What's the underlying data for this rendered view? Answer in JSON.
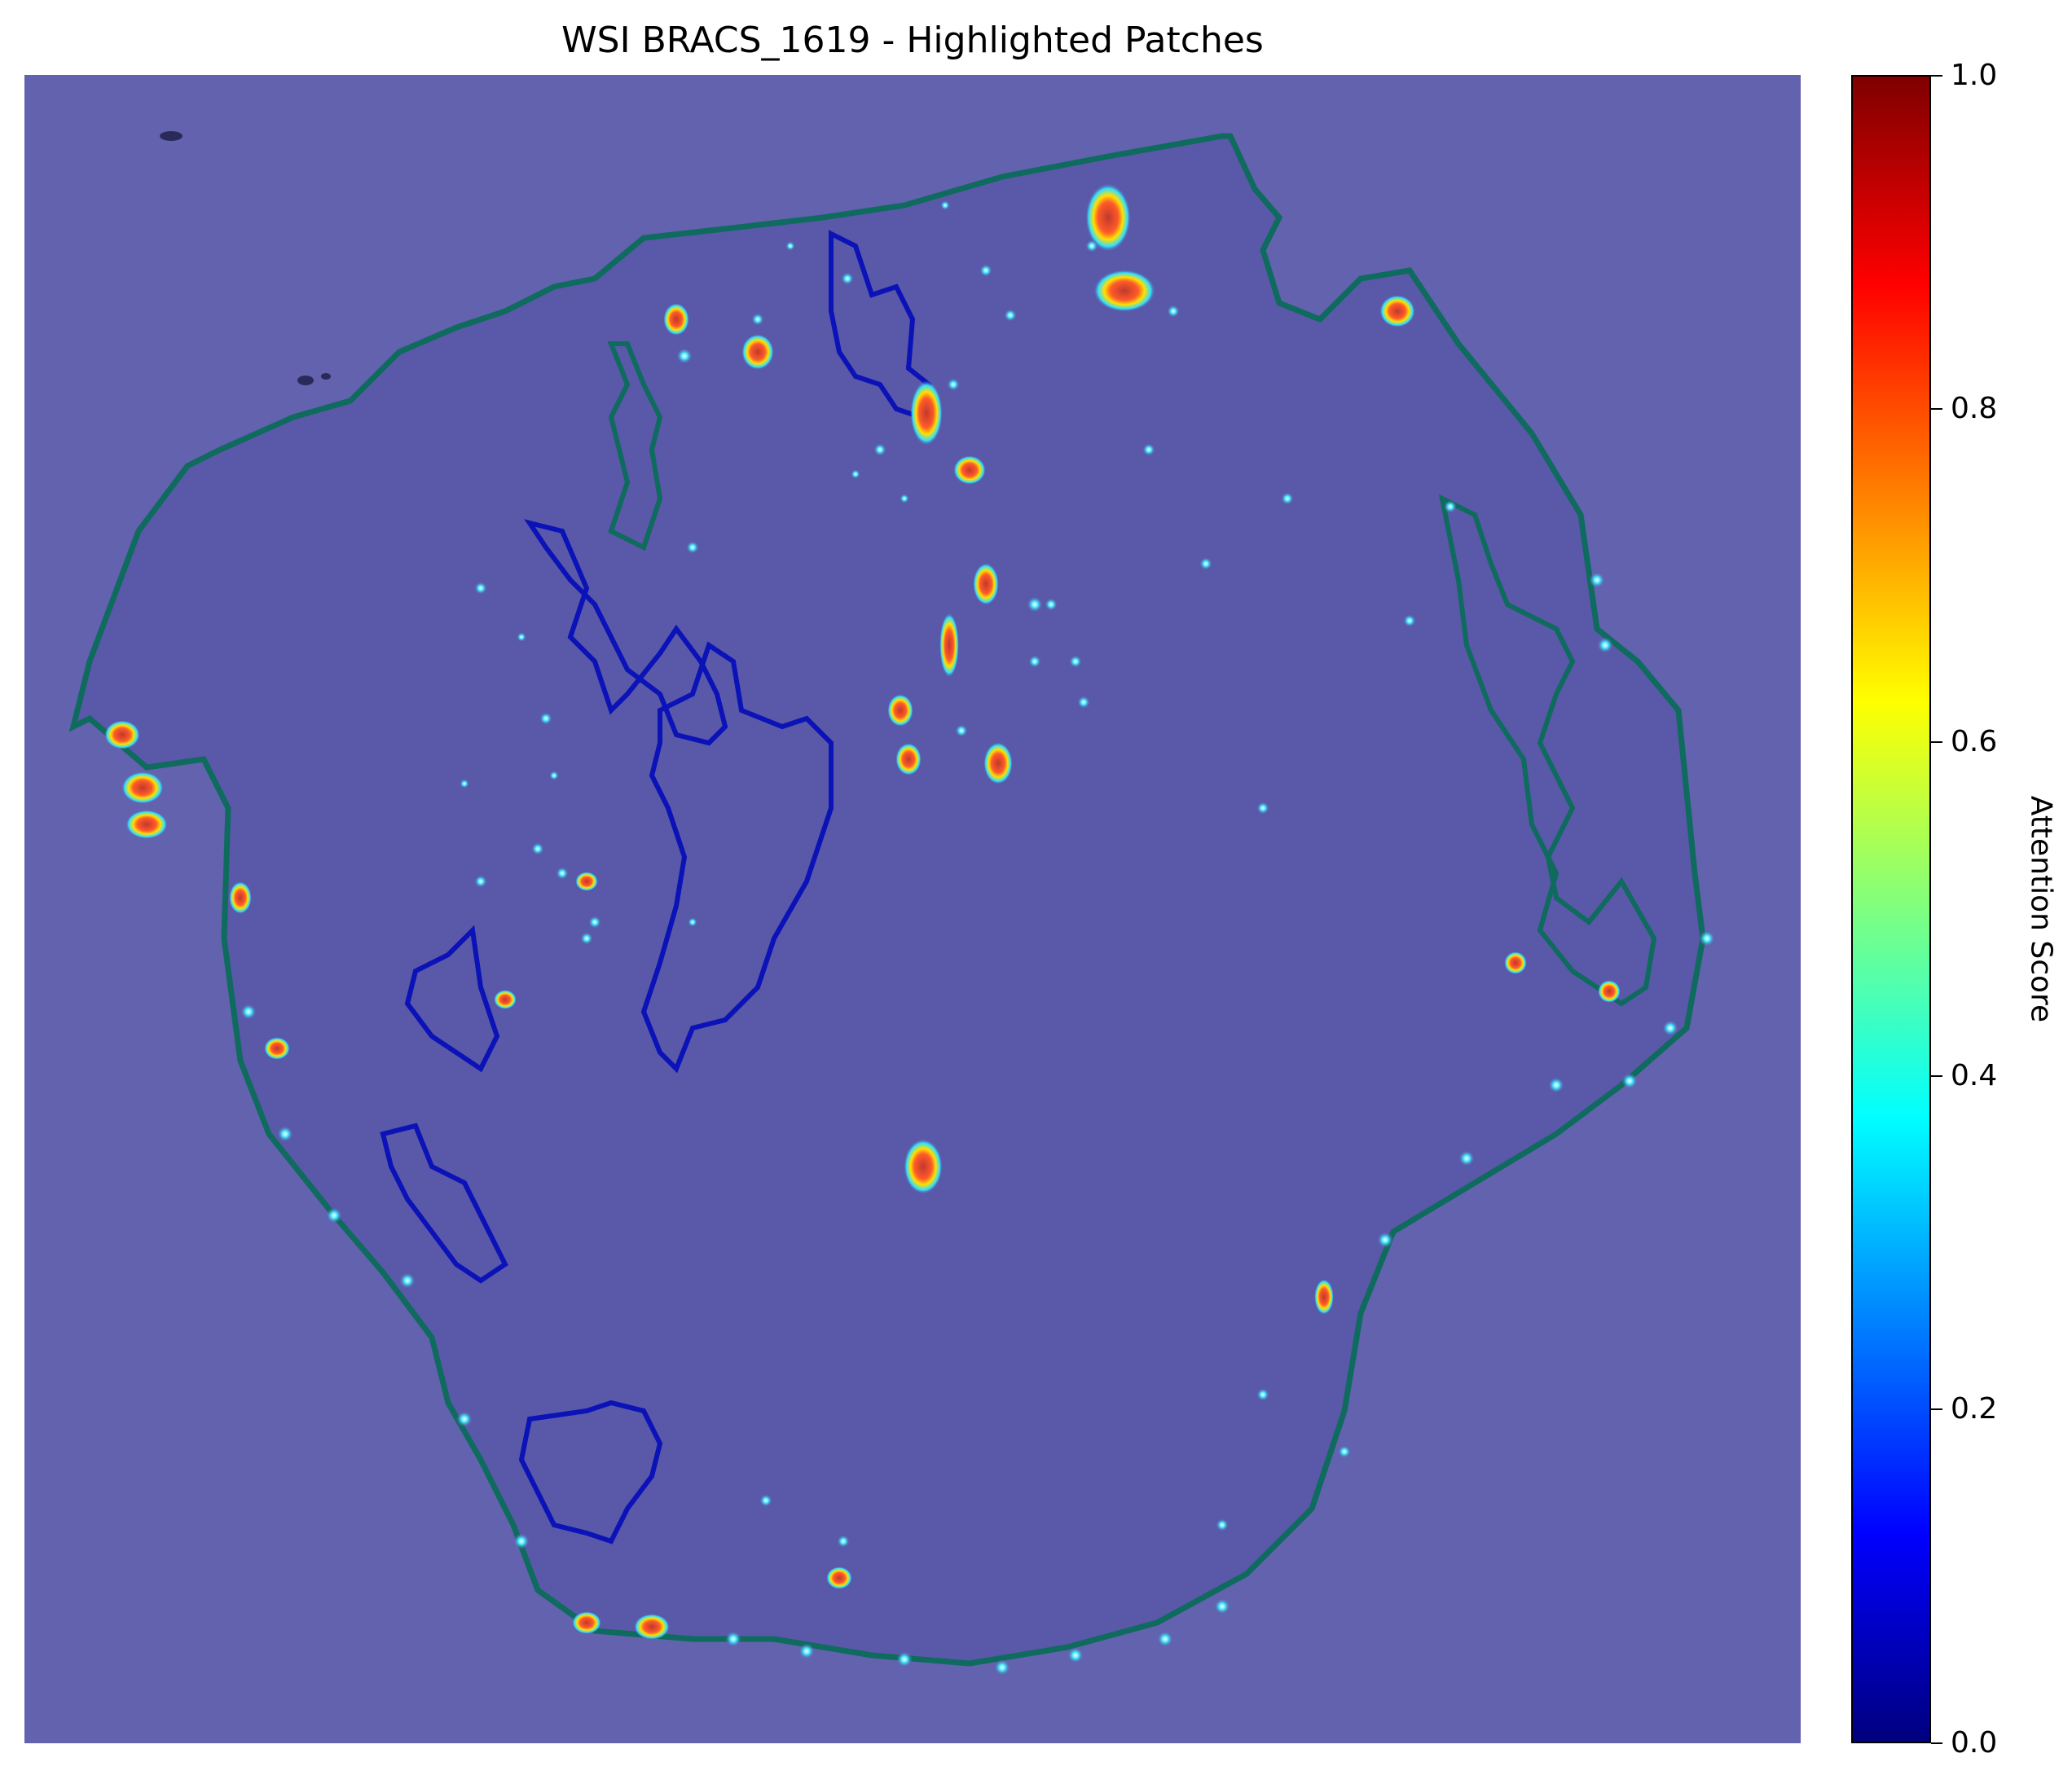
{
  "title": "WSI BRACS_1619 - Highlighted Patches",
  "colorbar": {
    "label": "Attention Score",
    "ticks": [
      "0.0",
      "0.2",
      "0.4",
      "0.6",
      "0.8",
      "1.0"
    ],
    "colormap": "jet",
    "range": [
      0.0,
      1.0
    ],
    "colors": [
      "#00007f",
      "#0000ff",
      "#007fff",
      "#00ffff",
      "#7fff7f",
      "#ffff00",
      "#ff7f00",
      "#ff0000",
      "#7f0000"
    ]
  },
  "image": {
    "background_color": "#6262ae",
    "tissue_color": "#5a58a8",
    "tissue_outline_color": "#0e6b5e",
    "annotation_outline_color": "#0a12b8"
  }
}
